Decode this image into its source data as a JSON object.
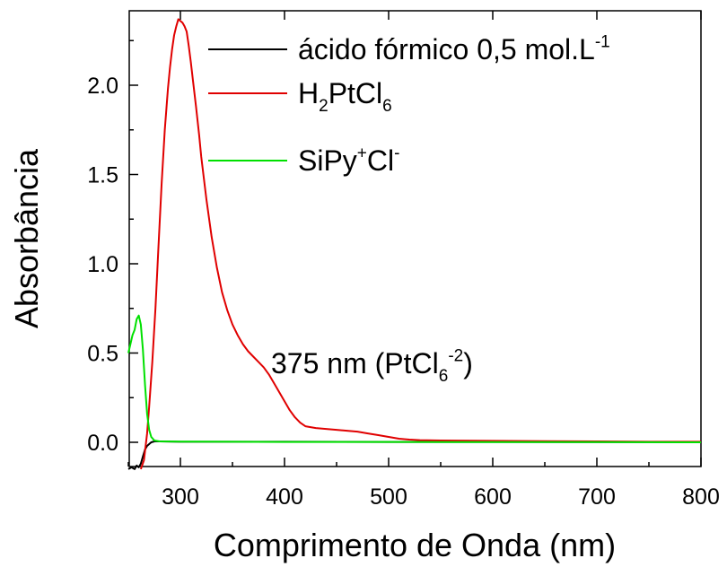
{
  "chart_data": {
    "type": "line",
    "xlabel": "Comprimento de Onda (nm)",
    "ylabel": "Absorbância",
    "xlim": [
      250,
      800
    ],
    "ylim": [
      -0.15,
      2.4
    ],
    "x_ticks": [
      300,
      400,
      500,
      600,
      700,
      800
    ],
    "y_ticks": [
      0.0,
      0.5,
      1.0,
      1.5,
      2.0
    ],
    "x_tick_labels": [
      "300",
      "400",
      "500",
      "600",
      "700",
      "800"
    ],
    "y_tick_labels": [
      "0.0",
      "0.5",
      "1.0",
      "1.5",
      "2.0"
    ],
    "grid": false,
    "legend": {
      "position": "top-right",
      "entries": [
        {
          "color": "#000000",
          "parts": [
            {
              "t": "ácido fórmico 0,5 mol.L"
            },
            {
              "t": "-1",
              "sup": true
            }
          ]
        },
        {
          "color": "#e00000",
          "parts": [
            {
              "t": "H"
            },
            {
              "t": "2",
              "sub": true
            },
            {
              "t": "PtCl"
            },
            {
              "t": "6",
              "sub": true
            }
          ]
        },
        {
          "color": "#00e000",
          "parts": [
            {
              "t": "SiPy"
            },
            {
              "t": "+",
              "sup": true
            },
            {
              "t": "Cl"
            },
            {
              "t": "-",
              "sup": true
            }
          ]
        }
      ]
    },
    "annotation": {
      "at": [
        375,
        0.43
      ],
      "parts": [
        {
          "t": "375 nm (PtCl"
        },
        {
          "t": "6",
          "sub": true
        },
        {
          "t": "-2",
          "sup": true
        },
        {
          "t": ")"
        }
      ]
    },
    "series": [
      {
        "color": "#000000",
        "x": [
          250,
          253,
          256,
          258,
          260,
          262,
          264,
          266,
          268,
          270,
          272,
          275,
          280,
          300,
          400,
          500,
          600,
          700,
          800
        ],
        "y": [
          -0.15,
          -0.14,
          -0.15,
          -0.13,
          -0.14,
          -0.12,
          -0.08,
          -0.04,
          -0.02,
          -0.01,
          0.0,
          0.005,
          0.005,
          0.003,
          0.003,
          0.002,
          0.002,
          0.001,
          0.001
        ]
      },
      {
        "color": "#e00000",
        "x": [
          262,
          265,
          268,
          270,
          273,
          276,
          279,
          282,
          285,
          288,
          290,
          292,
          294,
          296,
          298,
          300,
          302,
          304,
          306,
          308,
          310,
          312,
          315,
          318,
          320,
          325,
          330,
          335,
          340,
          345,
          350,
          355,
          360,
          365,
          370,
          375,
          380,
          385,
          390,
          395,
          400,
          405,
          410,
          415,
          420,
          430,
          440,
          450,
          460,
          470,
          480,
          490,
          500,
          510,
          520,
          530,
          550,
          600,
          650,
          700,
          750,
          800
        ],
        "y": [
          -0.15,
          -0.1,
          0.05,
          0.2,
          0.45,
          0.75,
          1.1,
          1.45,
          1.75,
          1.98,
          2.1,
          2.2,
          2.28,
          2.33,
          2.37,
          2.36,
          2.35,
          2.33,
          2.3,
          2.22,
          2.13,
          2.03,
          1.88,
          1.72,
          1.6,
          1.36,
          1.15,
          0.98,
          0.84,
          0.74,
          0.66,
          0.6,
          0.55,
          0.51,
          0.48,
          0.45,
          0.42,
          0.38,
          0.33,
          0.28,
          0.23,
          0.18,
          0.14,
          0.11,
          0.09,
          0.08,
          0.075,
          0.07,
          0.065,
          0.06,
          0.05,
          0.04,
          0.03,
          0.02,
          0.015,
          0.012,
          0.01,
          0.008,
          0.006,
          0.005,
          0.003,
          0.003
        ]
      },
      {
        "color": "#00e000",
        "x": [
          250,
          252,
          254,
          256,
          258,
          260,
          262,
          264,
          266,
          268,
          270,
          272,
          275,
          280,
          300,
          400,
          500,
          600,
          700,
          800
        ],
        "y": [
          0.5,
          0.55,
          0.6,
          0.63,
          0.69,
          0.71,
          0.66,
          0.52,
          0.32,
          0.16,
          0.07,
          0.03,
          0.01,
          0.005,
          0.004,
          0.002,
          0.002,
          0.001,
          0.001,
          0.0
        ]
      }
    ]
  }
}
